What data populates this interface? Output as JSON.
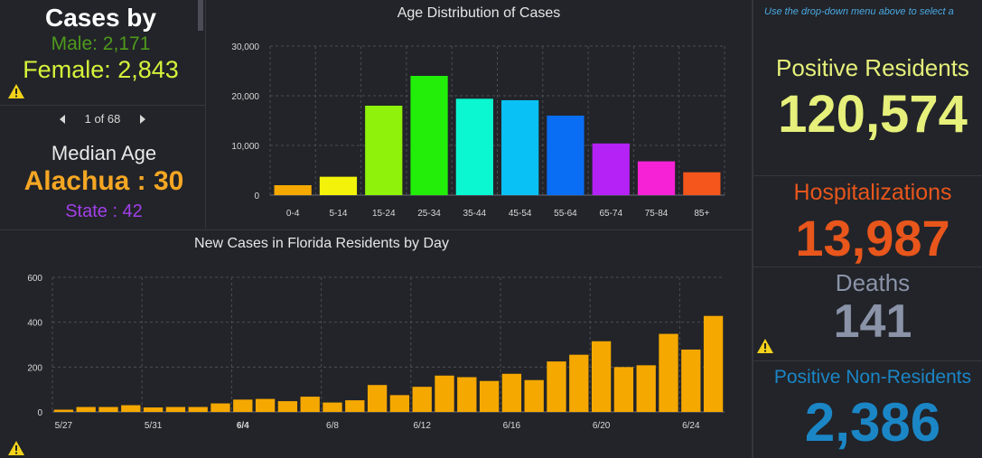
{
  "gender": {
    "title": "Cases by",
    "male": "Male: 2,171",
    "female": "Female: 2,843"
  },
  "median": {
    "pager": "1 of 68",
    "title": "Median Age",
    "county": "Alachua : 30",
    "state": "State : 42"
  },
  "right": {
    "note": "Use the drop-down menu above to select a",
    "positive_label": "Positive Residents",
    "positive_value": "120,574",
    "hosp_label": "Hospitalizations",
    "hosp_value": "13,987",
    "deaths_label": "Deaths",
    "deaths_value": "141",
    "nonres_label": "Positive Non-Residents",
    "nonres_value": "2,386"
  },
  "colors": {
    "male": "#4e9a1c",
    "female": "#d7f23a",
    "county": "#f5a623",
    "state": "#a23fe8",
    "positive": "#e6f07a",
    "hosp": "#e8561c",
    "deaths": "#8a93a8",
    "nonres": "#1b86c6",
    "daily_bar": "#f5a800"
  },
  "chart_data": [
    {
      "type": "bar",
      "title": "Age Distribution of Cases",
      "categories": [
        "0-4",
        "5-14",
        "15-24",
        "25-34",
        "35-44",
        "45-54",
        "55-64",
        "65-74",
        "75-84",
        "85+"
      ],
      "values": [
        2000,
        3700,
        18000,
        24000,
        19400,
        19100,
        16000,
        10400,
        6800,
        4600
      ],
      "colors": [
        "#f5a800",
        "#f2f20a",
        "#8ef20a",
        "#22ee0a",
        "#0af7d2",
        "#0ac1f5",
        "#0a6ef5",
        "#b422f5",
        "#f522d6",
        "#f5561c"
      ],
      "ylim": [
        0,
        30000
      ],
      "yticks": [
        "0",
        "10,000",
        "20,000",
        "30,000"
      ],
      "grid": true
    },
    {
      "type": "bar",
      "title": "New Cases in Florida Residents by Day",
      "values": [
        10,
        22,
        22,
        30,
        20,
        22,
        22,
        38,
        55,
        58,
        48,
        68,
        42,
        52,
        120,
        75,
        112,
        162,
        155,
        138,
        170,
        142,
        225,
        255,
        315,
        200,
        208,
        348,
        278,
        428
      ],
      "xticks": [
        {
          "index": 0,
          "label": "5/27",
          "bold": false
        },
        {
          "index": 4,
          "label": "5/31",
          "bold": false
        },
        {
          "index": 8,
          "label": "6/4",
          "bold": true
        },
        {
          "index": 12,
          "label": "6/8",
          "bold": false
        },
        {
          "index": 16,
          "label": "6/12",
          "bold": false
        },
        {
          "index": 20,
          "label": "6/16",
          "bold": false
        },
        {
          "index": 24,
          "label": "6/20",
          "bold": false
        },
        {
          "index": 28,
          "label": "6/24",
          "bold": false
        }
      ],
      "ylim": [
        0,
        600
      ],
      "yticks": [
        "0",
        "200",
        "400",
        "600"
      ],
      "grid": true
    }
  ]
}
